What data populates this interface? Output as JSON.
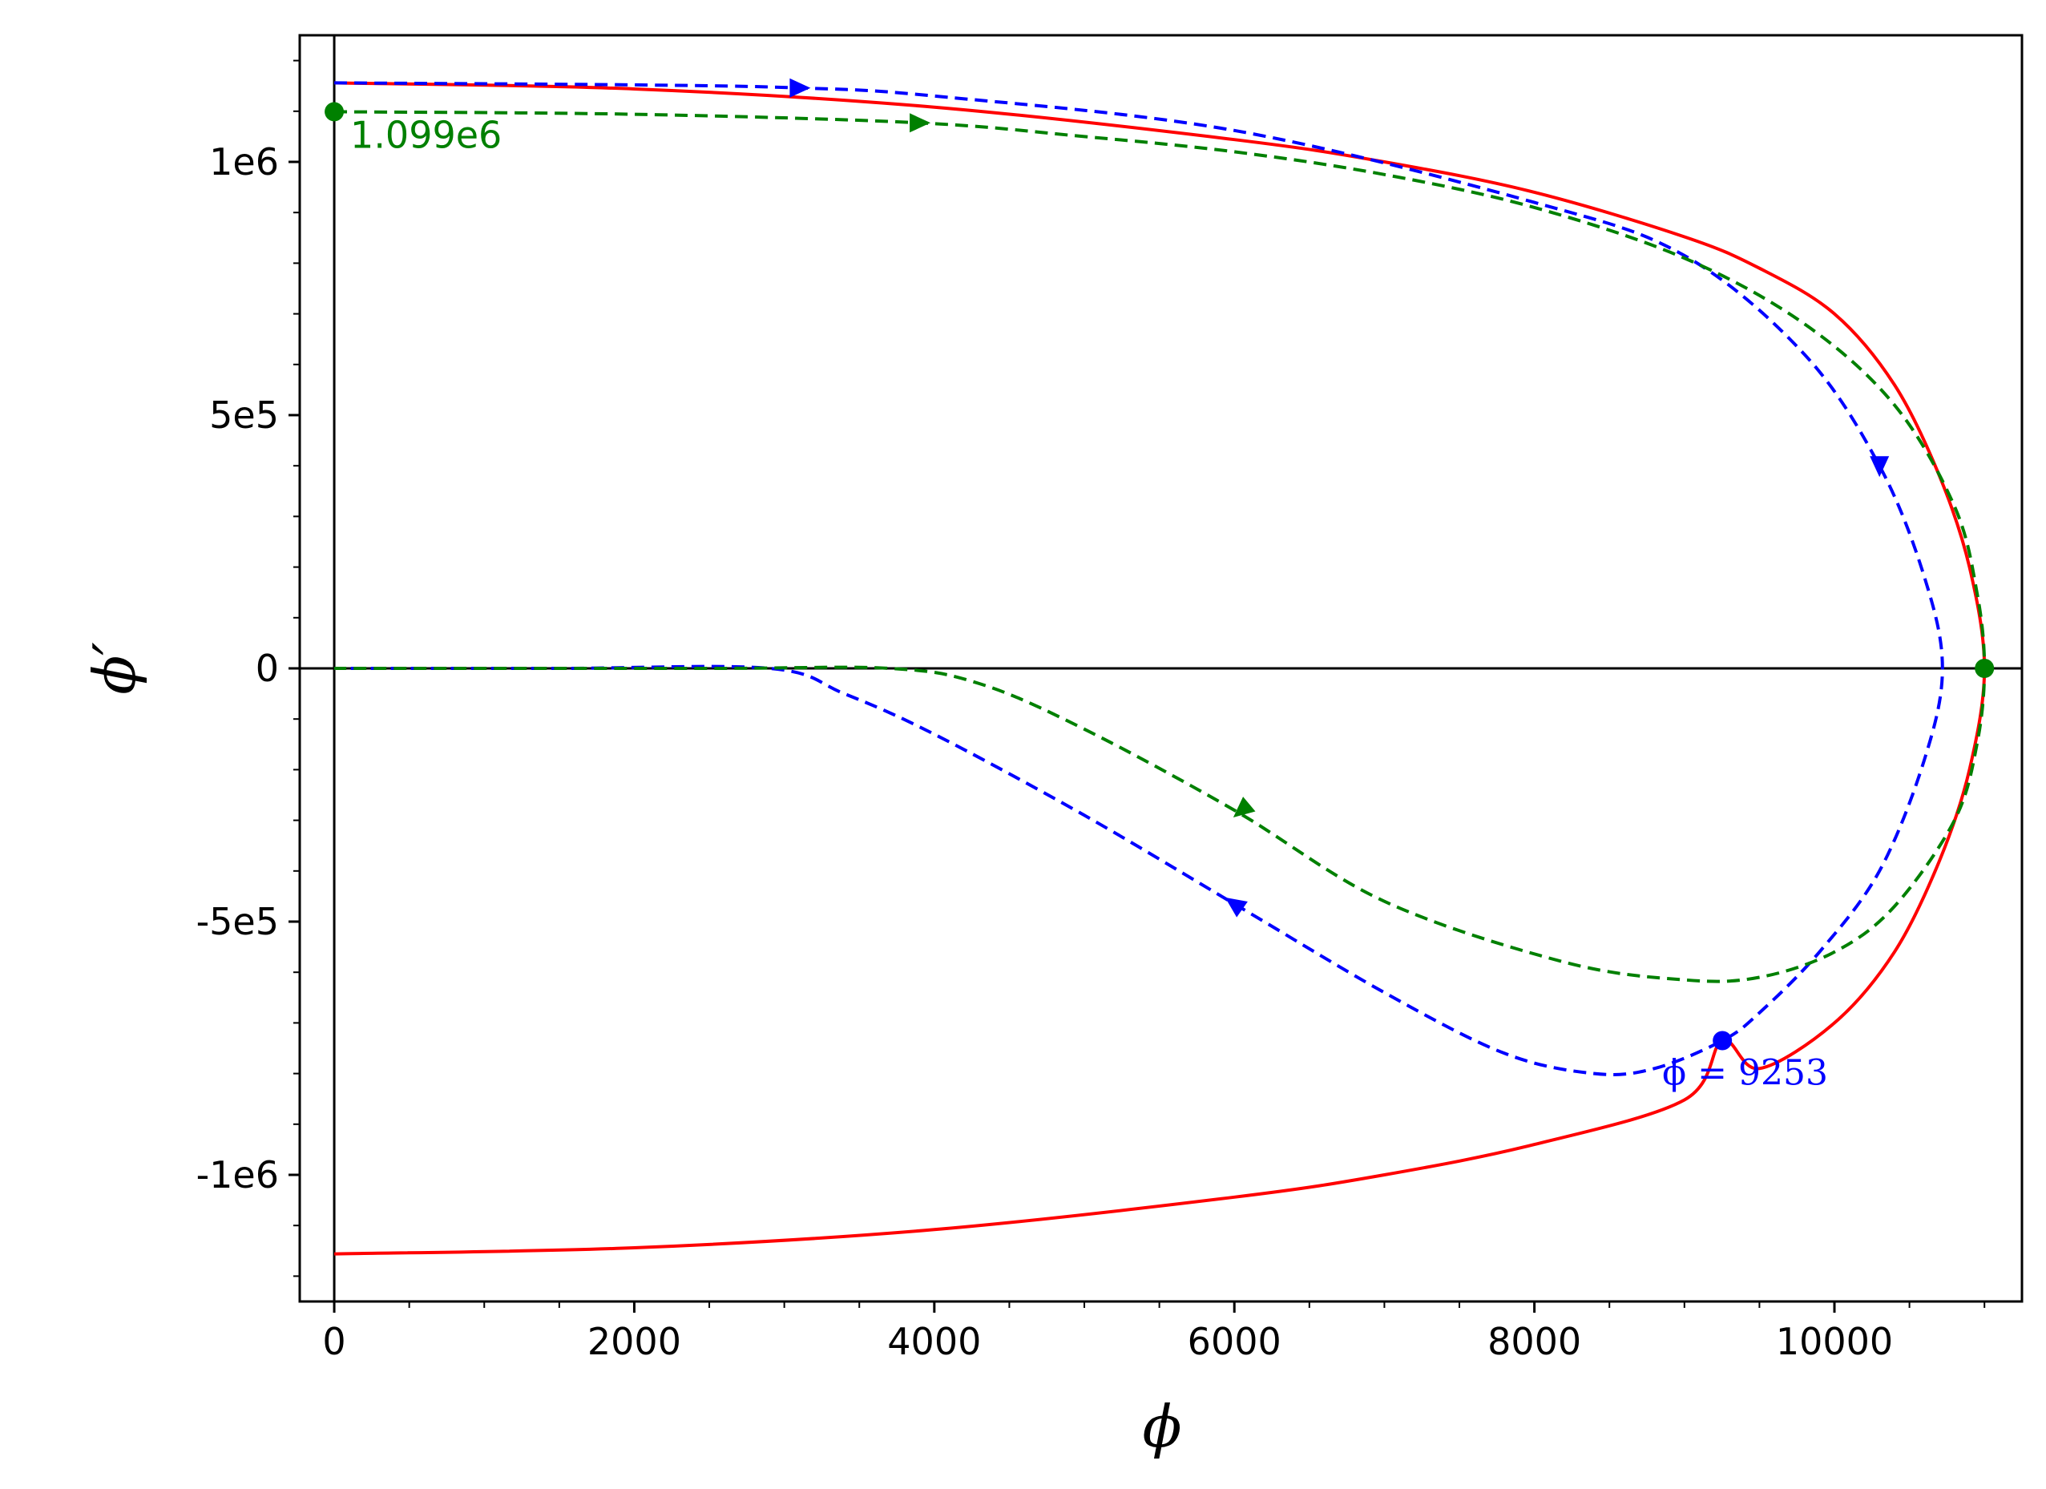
{
  "chart_data": {
    "type": "line",
    "xlabel": "ϕ",
    "ylabel": "ϕ′",
    "xlim": [
      -230,
      11250
    ],
    "ylim": [
      -1250000,
      1250000
    ],
    "x_ticks": [
      {
        "value": 0,
        "label": "0"
      },
      {
        "value": 2000,
        "label": "2000"
      },
      {
        "value": 4000,
        "label": "4000"
      },
      {
        "value": 6000,
        "label": "6000"
      },
      {
        "value": 8000,
        "label": "8000"
      },
      {
        "value": 10000,
        "label": "10000"
      }
    ],
    "y_ticks": [
      {
        "value": 1000000,
        "label": "1e6"
      },
      {
        "value": 500000,
        "label": "5e5"
      },
      {
        "value": 0,
        "label": "0"
      },
      {
        "value": -500000,
        "label": "-5e5"
      },
      {
        "value": -1000000,
        "label": "-1e6"
      }
    ],
    "x_minor_step": 500,
    "y_minor_step": 100000,
    "grid": false,
    "reference_lines": {
      "x": 0,
      "y": 0
    },
    "series": [
      {
        "color": "#ff0000",
        "style": "solid",
        "points": [
          [
            0,
            1156000
          ],
          [
            2000,
            1144000
          ],
          [
            4000,
            1108000
          ],
          [
            6000,
            1044000
          ],
          [
            7000,
            1000000
          ],
          [
            8000,
            940000
          ],
          [
            9000,
            852000
          ],
          [
            9500,
            790000
          ],
          [
            10000,
            700000
          ],
          [
            10400,
            560000
          ],
          [
            10700,
            380000
          ],
          [
            10900,
            200000
          ],
          [
            11000,
            0
          ],
          [
            10900,
            -200000
          ],
          [
            10700,
            -380000
          ],
          [
            10400,
            -560000
          ],
          [
            10000,
            -700000
          ],
          [
            9500,
            -790000
          ],
          [
            9253,
            -735000
          ],
          [
            9000,
            -852000
          ],
          [
            8000,
            -940000
          ],
          [
            7000,
            -1000000
          ],
          [
            6000,
            -1044000
          ],
          [
            4000,
            -1108000
          ],
          [
            2000,
            -1144000
          ],
          [
            0,
            -1156000
          ]
        ]
      },
      {
        "color": "#0000ff",
        "style": "dashed",
        "points": [
          [
            0,
            1156000
          ],
          [
            2000,
            1152000
          ],
          [
            3100,
            1146000
          ],
          [
            4000,
            1130000
          ],
          [
            6000,
            1062000
          ],
          [
            8000,
            920000
          ],
          [
            9000,
            815000
          ],
          [
            9800,
            620000
          ],
          [
            10300,
            400000
          ],
          [
            10600,
            180000
          ],
          [
            10720,
            0
          ],
          [
            10600,
            -180000
          ],
          [
            10300,
            -400000
          ],
          [
            9900,
            -560000
          ],
          [
            9500,
            -680000
          ],
          [
            9253,
            -735000
          ],
          [
            8800,
            -790000
          ],
          [
            8400,
            -800000
          ],
          [
            7800,
            -760000
          ],
          [
            7000,
            -640000
          ],
          [
            6000,
            -465000
          ],
          [
            5000,
            -290000
          ],
          [
            4000,
            -130000
          ],
          [
            3400,
            -50000
          ],
          [
            2900,
            0
          ],
          [
            1500,
            0
          ],
          [
            0,
            0
          ]
        ],
        "arrows": [
          [
            3100,
            1146000,
            "right"
          ],
          [
            10300,
            400000,
            "down"
          ],
          [
            6000,
            -465000,
            "up-left"
          ]
        ]
      },
      {
        "color": "#008000",
        "style": "dashed",
        "points": [
          [
            0,
            1099000
          ],
          [
            2000,
            1094000
          ],
          [
            3900,
            1077000
          ],
          [
            5000,
            1050000
          ],
          [
            6000,
            1020000
          ],
          [
            7000,
            975000
          ],
          [
            8000,
            910000
          ],
          [
            9000,
            810000
          ],
          [
            9800,
            680000
          ],
          [
            10400,
            520000
          ],
          [
            10800,
            320000
          ],
          [
            10950,
            150000
          ],
          [
            11000,
            0
          ],
          [
            10950,
            -150000
          ],
          [
            10800,
            -300000
          ],
          [
            10400,
            -470000
          ],
          [
            10000,
            -560000
          ],
          [
            9500,
            -610000
          ],
          [
            9000,
            -615000
          ],
          [
            8200,
            -580000
          ],
          [
            7000,
            -460000
          ],
          [
            6000,
            -280000
          ],
          [
            5000,
            -120000
          ],
          [
            4300,
            -30000
          ],
          [
            3700,
            0
          ],
          [
            2500,
            0
          ],
          [
            0,
            0
          ]
        ],
        "arrows": [
          [
            3900,
            1077000,
            "right"
          ],
          [
            6050,
            -280000,
            "down-left"
          ]
        ]
      }
    ],
    "markers": [
      {
        "x": 0,
        "y": 1099000,
        "color": "#008000",
        "label": "1.099e6"
      },
      {
        "x": 11000,
        "y": 0,
        "color": "#008000",
        "label": ""
      },
      {
        "x": 9253,
        "y": -735000,
        "color": "#0000ff",
        "label": "ϕ = 9253"
      }
    ]
  }
}
